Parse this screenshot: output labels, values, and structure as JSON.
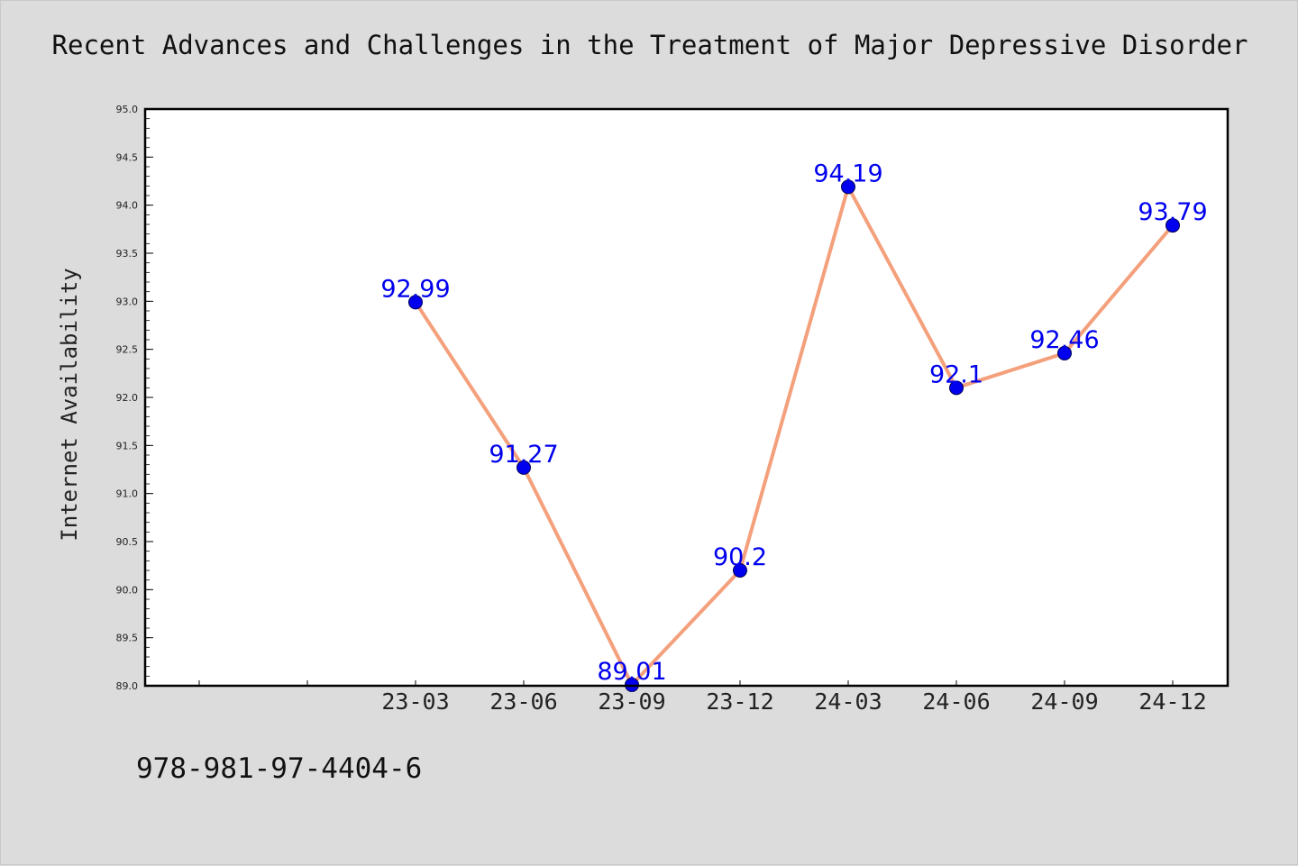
{
  "title": "Recent Advances and Challenges in the Treatment of Major Depressive Disorder",
  "footer": "978-981-97-4404-6",
  "colors": {
    "background": "#dcdcdc",
    "plot_background": "#ffffff",
    "line": "#f4a07c",
    "marker": "#0000ee",
    "data_label": "#0000ee"
  },
  "chart_data": {
    "type": "line",
    "title": "Recent Advances and Challenges in the Treatment of Major Depressive Disorder",
    "xlabel": "",
    "ylabel": "Internet Availability",
    "categories": [
      "23-03",
      "23-06",
      "23-09",
      "23-12",
      "24-03",
      "24-06",
      "24-09",
      "24-12"
    ],
    "series": [
      {
        "values": [
          92.99,
          91.27,
          89.01,
          90.2,
          94.19,
          92.1,
          92.46,
          93.79
        ],
        "labels": [
          "92.99",
          "91.27",
          "89.01",
          "90.2",
          "94.19",
          "92.1",
          "92.46",
          "93.79"
        ]
      }
    ],
    "ylim": [
      89.0,
      95.0
    ],
    "yticks": [
      "89.0",
      "89.5",
      "90.0",
      "90.5",
      "91.0",
      "91.5",
      "92.0",
      "92.5",
      "93.0",
      "93.5",
      "94.0",
      "94.5",
      "95.0"
    ],
    "grid": false,
    "legend": "none"
  }
}
